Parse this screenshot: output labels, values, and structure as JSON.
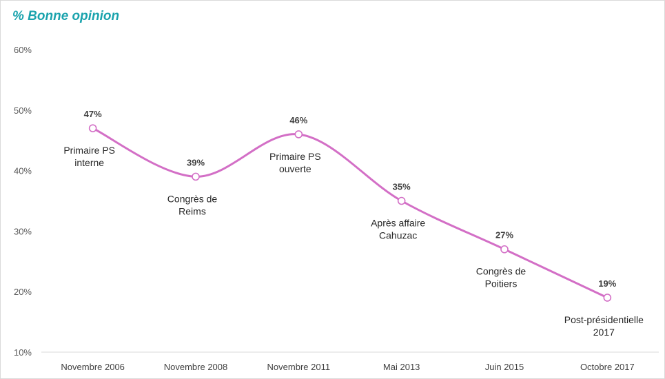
{
  "chart_data": {
    "type": "line",
    "title": "% Bonne opinion",
    "categories": [
      "Novembre 2006",
      "Novembre 2008",
      "Novembre 2011",
      "Mai 2013",
      "Juin 2015",
      "Octobre 2017"
    ],
    "series": [
      {
        "values": [
          47,
          39,
          46,
          35,
          27,
          19
        ],
        "labels": [
          "47%",
          "39%",
          "46%",
          "35%",
          "27%",
          "19%"
        ],
        "color": "#d36fc6"
      }
    ],
    "annotations": [
      [
        "Primaire PS",
        "interne"
      ],
      [
        "Congrès de",
        "Reims"
      ],
      [
        "Primaire PS",
        "ouverte"
      ],
      [
        "Après affaire",
        "Cahuzac"
      ],
      [
        "Congrès de",
        "Poitiers"
      ],
      [
        "Post-présidentielle",
        "2017"
      ]
    ],
    "ylim": [
      10,
      60
    ],
    "yticks": [
      10,
      20,
      30,
      40,
      50,
      60
    ],
    "ytick_labels": [
      "10%",
      "20%",
      "30%",
      "40%",
      "50%",
      "60%"
    ],
    "xlabel": "",
    "ylabel": "",
    "grid": false,
    "legend": "none"
  }
}
